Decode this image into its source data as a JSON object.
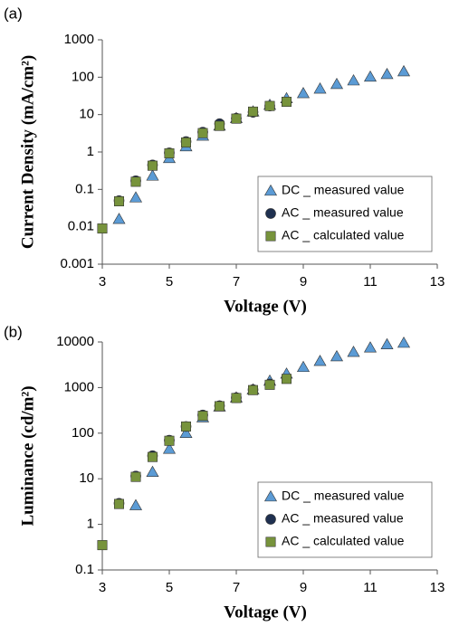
{
  "chart_data": [
    {
      "type": "scatter",
      "panel_label": "(a)",
      "x_label": "Voltage (V)",
      "y_label": "Current Density (mA/cm²)",
      "xlim": [
        3,
        13
      ],
      "xticks": [
        3,
        5,
        7,
        9,
        11,
        13
      ],
      "ylim": [
        0.001,
        1000
      ],
      "yticks": [
        0.001,
        0.01,
        0.1,
        1,
        10,
        100,
        1000
      ],
      "y_scale": "log",
      "legend": "lower right",
      "series": [
        {
          "name": "DC _ measured value",
          "color": "#5b9bd5",
          "marker": "triangle",
          "x": [
            3.5,
            4,
            4.5,
            5,
            5.5,
            6,
            6.5,
            7,
            7.5,
            8,
            8.5,
            9,
            9.5,
            10,
            10.5,
            11,
            11.5,
            12
          ],
          "values": [
            0.016,
            0.06,
            0.23,
            0.68,
            1.4,
            2.7,
            5,
            8,
            12,
            18,
            27,
            37,
            49,
            65,
            81,
            102,
            120,
            142
          ]
        },
        {
          "name": "AC _ measured value",
          "color": "#1f3050",
          "marker": "circle",
          "x": [
            3.5,
            4,
            4.5,
            5,
            5.5,
            6,
            6.5,
            7,
            7.5,
            8
          ],
          "values": [
            0.05,
            0.17,
            0.45,
            0.95,
            1.9,
            3.4,
            5.7,
            8,
            11.5,
            17
          ]
        },
        {
          "name": "AC _ calculated value",
          "color": "#77933c",
          "marker": "square",
          "x": [
            3,
            3.5,
            4,
            4.5,
            5,
            5.5,
            6,
            6.5,
            7,
            7.5,
            8,
            8.5
          ],
          "values": [
            0.009,
            0.048,
            0.16,
            0.43,
            0.92,
            1.8,
            3.2,
            5,
            7.8,
            12,
            17,
            22
          ]
        }
      ]
    },
    {
      "type": "scatter",
      "panel_label": "(b)",
      "x_label": "Voltage (V)",
      "y_label": "Luminance (cd/m²)",
      "xlim": [
        3,
        13
      ],
      "xticks": [
        3,
        5,
        7,
        9,
        11,
        13
      ],
      "ylim": [
        0.1,
        10000
      ],
      "yticks": [
        0.1,
        1,
        10,
        100,
        1000,
        10000
      ],
      "y_scale": "log",
      "legend": "lower right",
      "series": [
        {
          "name": "DC _ measured value",
          "color": "#5b9bd5",
          "marker": "triangle",
          "x": [
            4,
            4.5,
            5,
            5.5,
            6,
            6.5,
            7,
            7.5,
            8,
            8.5,
            9,
            9.5,
            10,
            10.5,
            11,
            11.5,
            12
          ],
          "values": [
            2.6,
            14,
            45,
            100,
            220,
            380,
            600,
            900,
            1400,
            2000,
            2800,
            3800,
            4800,
            6000,
            7500,
            8800,
            9500
          ]
        },
        {
          "name": "AC _ measured value",
          "color": "#1f3050",
          "marker": "circle",
          "x": [
            3.5,
            4,
            4.5,
            5,
            5.5,
            6,
            6.5,
            7,
            7.5,
            8
          ],
          "values": [
            2.9,
            11.5,
            32,
            70,
            140,
            250,
            400,
            600,
            900,
            1200
          ]
        },
        {
          "name": "AC _ calculated value",
          "color": "#77933c",
          "marker": "square",
          "x": [
            3,
            3.5,
            4,
            4.5,
            5,
            5.5,
            6,
            6.5,
            7,
            7.5,
            8,
            8.5
          ],
          "values": [
            0.35,
            2.8,
            11,
            30,
            68,
            140,
            240,
            390,
            590,
            880,
            1150,
            1550
          ]
        }
      ]
    }
  ]
}
